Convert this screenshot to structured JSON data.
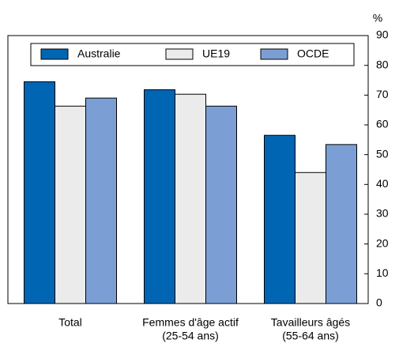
{
  "chart_data": {
    "type": "bar",
    "y_unit": "%",
    "categories": [
      [
        "Total"
      ],
      [
        "Femmes d'âge actif",
        "(25-54 ans)"
      ],
      [
        "Tavailleurs âgés",
        "(55-64 ans)"
      ]
    ],
    "series": [
      {
        "name": "Australie",
        "color": "#0066b3",
        "values": [
          74.5,
          71.8,
          56.5
        ]
      },
      {
        "name": "UE19",
        "color": "#ebebeb",
        "values": [
          66.3,
          70.3,
          44
        ]
      },
      {
        "name": "OCDE",
        "color": "#7b9fd4",
        "values": [
          69,
          66.3,
          53.4
        ]
      }
    ],
    "ylim": [
      0,
      90
    ],
    "yticks": [
      0,
      10,
      20,
      30,
      40,
      50,
      60,
      70,
      80,
      90
    ],
    "legend": "top"
  }
}
